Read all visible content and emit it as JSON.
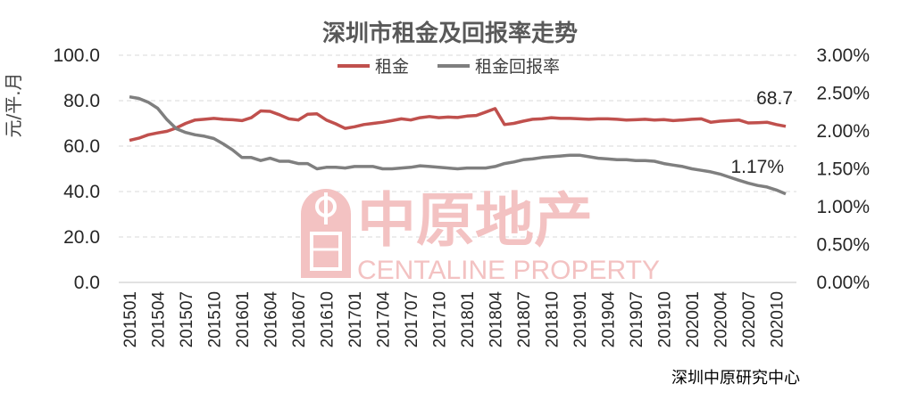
{
  "watermark": {
    "brand_cn": "中原地产",
    "brand_en": "CENTALINE PROPERTY",
    "seal_text": "中原"
  },
  "source_note": "深圳中原研究中心",
  "colors": {
    "rent": "#C0504D",
    "yield": "#7F7F7F",
    "grid": "#D9D9D9",
    "watermark": "#F3C2C2"
  },
  "chart_data": {
    "type": "line",
    "title": "深圳市租金及回报率走势",
    "ylabel": "元/平.月",
    "y2label": "",
    "ylim": [
      0,
      100
    ],
    "y2lim": [
      0,
      0.03
    ],
    "yticks": [
      "0.0",
      "20.0",
      "40.0",
      "60.0",
      "80.0",
      "100.0"
    ],
    "y2ticks": [
      "0.00%",
      "0.50%",
      "1.00%",
      "1.50%",
      "2.00%",
      "2.50%",
      "3.00%"
    ],
    "grid": true,
    "legend": "top-center",
    "xtick_labels": [
      "201501",
      "201504",
      "201507",
      "201510",
      "201601",
      "201604",
      "201607",
      "201610",
      "201701",
      "201704",
      "201707",
      "201710",
      "201801",
      "201804",
      "201807",
      "201810",
      "201901",
      "201904",
      "201907",
      "201910",
      "202001",
      "202004",
      "202007",
      "202010"
    ],
    "x": [
      "201501",
      "201502",
      "201503",
      "201504",
      "201505",
      "201506",
      "201507",
      "201508",
      "201509",
      "201510",
      "201511",
      "201512",
      "201601",
      "201602",
      "201603",
      "201604",
      "201605",
      "201606",
      "201607",
      "201608",
      "201609",
      "201610",
      "201611",
      "201612",
      "201701",
      "201702",
      "201703",
      "201704",
      "201705",
      "201706",
      "201707",
      "201708",
      "201709",
      "201710",
      "201711",
      "201712",
      "201801",
      "201802",
      "201803",
      "201804",
      "201805",
      "201806",
      "201807",
      "201808",
      "201809",
      "201810",
      "201811",
      "201812",
      "201901",
      "201902",
      "201903",
      "201904",
      "201905",
      "201906",
      "201907",
      "201908",
      "201909",
      "201910",
      "201911",
      "201912",
      "202001",
      "202002",
      "202003",
      "202004",
      "202005",
      "202006",
      "202007",
      "202008",
      "202009",
      "202010",
      "202011"
    ],
    "series": [
      {
        "name": "租金",
        "axis": "left",
        "values": [
          62.5,
          63.5,
          65.0,
          65.8,
          66.5,
          68.0,
          70.0,
          71.5,
          71.8,
          72.2,
          71.8,
          71.6,
          71.2,
          72.5,
          75.5,
          75.3,
          73.8,
          72.0,
          71.5,
          74.0,
          74.2,
          71.5,
          69.8,
          67.8,
          68.5,
          69.5,
          70.0,
          70.5,
          71.2,
          72.0,
          71.5,
          72.5,
          73.0,
          72.5,
          72.8,
          72.6,
          73.2,
          73.5,
          75.0,
          76.5,
          69.5,
          70.0,
          71.0,
          71.8,
          72.0,
          72.5,
          72.2,
          72.2,
          72.0,
          71.8,
          72.0,
          72.0,
          71.8,
          71.5,
          71.6,
          71.8,
          71.5,
          71.7,
          71.2,
          71.5,
          71.8,
          72.0,
          70.5,
          71.0,
          71.2,
          71.5,
          70.2,
          70.3,
          70.5,
          69.5,
          68.7
        ]
      },
      {
        "name": "租金回报率",
        "axis": "right",
        "values": [
          0.0245,
          0.0243,
          0.0238,
          0.023,
          0.0215,
          0.0203,
          0.0198,
          0.0195,
          0.0193,
          0.019,
          0.0183,
          0.0175,
          0.0165,
          0.0165,
          0.0161,
          0.0164,
          0.016,
          0.016,
          0.0157,
          0.0157,
          0.015,
          0.0152,
          0.0152,
          0.0151,
          0.0153,
          0.0153,
          0.0153,
          0.015,
          0.015,
          0.0151,
          0.0152,
          0.0154,
          0.0153,
          0.0152,
          0.0151,
          0.015,
          0.0151,
          0.0151,
          0.0151,
          0.0153,
          0.0157,
          0.0159,
          0.0162,
          0.0163,
          0.0165,
          0.0166,
          0.0167,
          0.0168,
          0.0168,
          0.0166,
          0.0164,
          0.0163,
          0.0162,
          0.0162,
          0.0161,
          0.0161,
          0.016,
          0.0157,
          0.0155,
          0.0153,
          0.015,
          0.0148,
          0.0146,
          0.0143,
          0.0139,
          0.0135,
          0.0131,
          0.0128,
          0.0126,
          0.0122,
          0.0117
        ]
      }
    ],
    "annotations": [
      {
        "series": "租金",
        "text": "68.7"
      },
      {
        "series": "租金回报率",
        "text": "1.17%"
      }
    ]
  }
}
